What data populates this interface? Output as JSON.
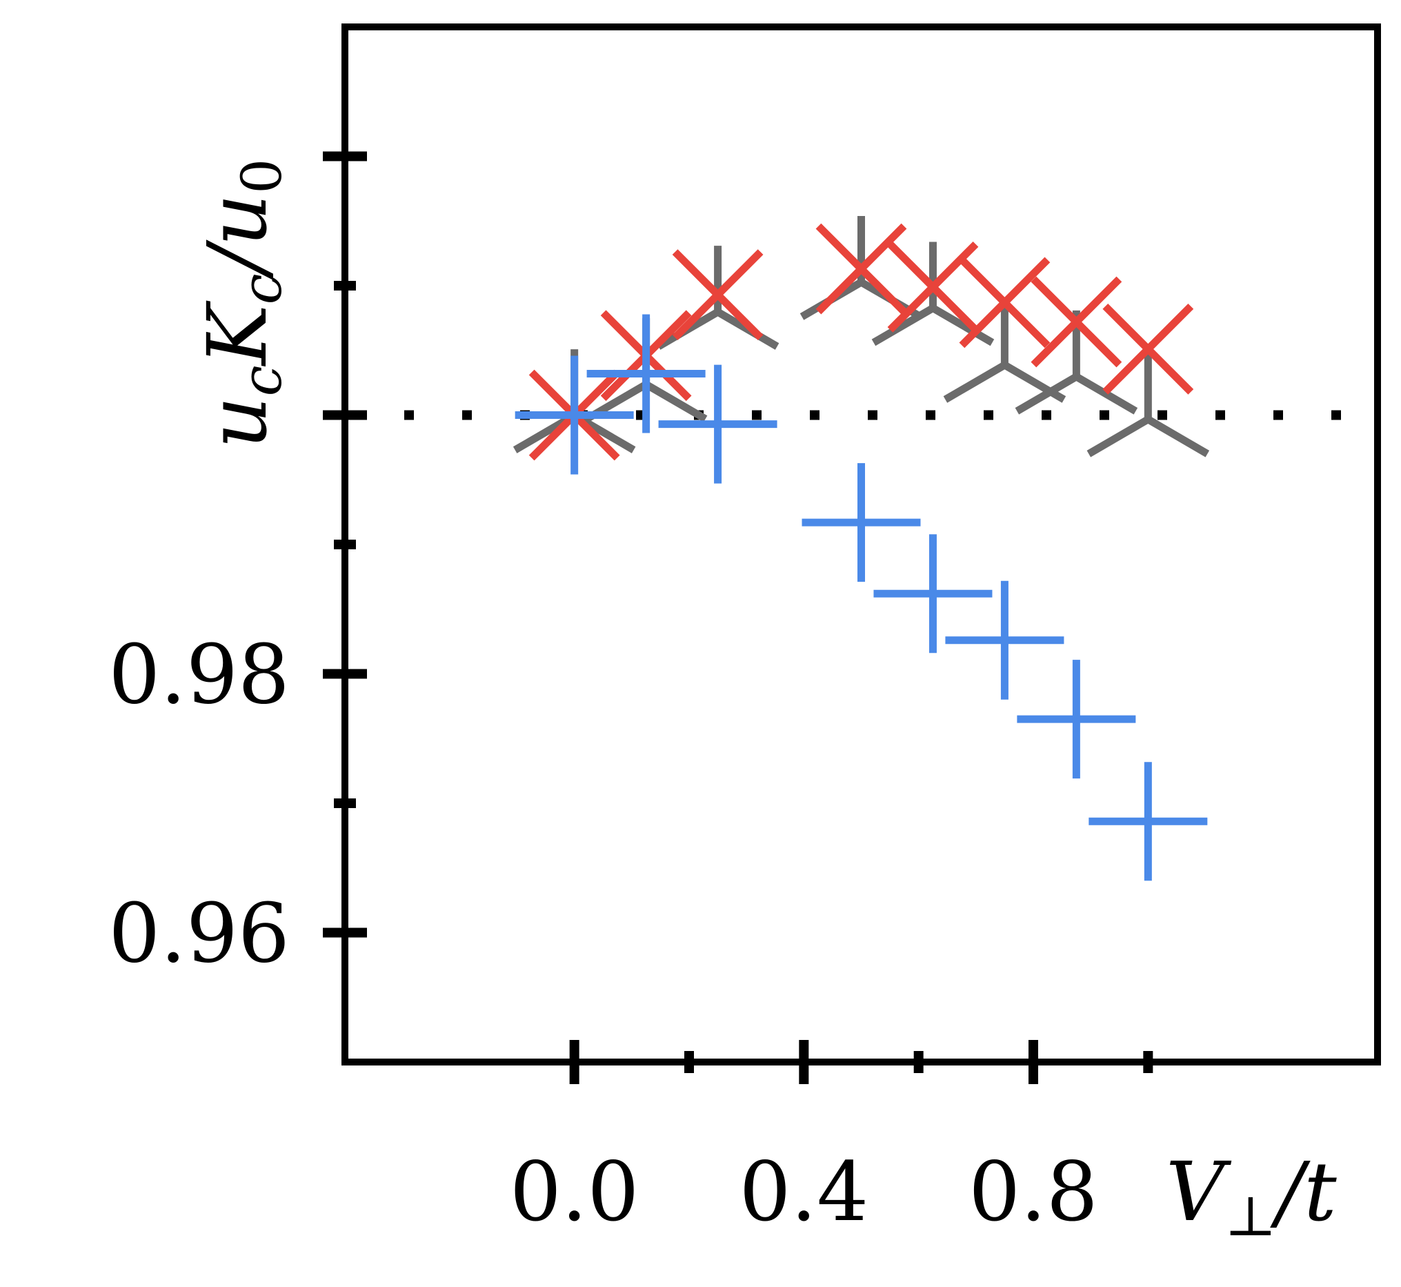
{
  "chart_data": {
    "type": "scatter",
    "title": "",
    "xlabel": "V⊥/t",
    "ylabel": "ucKc/u0",
    "xlim": [
      -0.4,
      1.4
    ],
    "ylim": [
      0.95,
      1.03
    ],
    "xticks": [
      {
        "value": 0.0,
        "label": "0.0"
      },
      {
        "value": 0.2,
        "label": ""
      },
      {
        "value": 0.4,
        "label": "0.4"
      },
      {
        "value": 0.6,
        "label": ""
      },
      {
        "value": 0.8,
        "label": "0.8"
      },
      {
        "value": 1.0,
        "label": ""
      }
    ],
    "yticks": [
      {
        "value": 0.96,
        "label": "0.96"
      },
      {
        "value": 0.97,
        "label": ""
      },
      {
        "value": 0.98,
        "label": "0.98"
      },
      {
        "value": 0.99,
        "label": ""
      },
      {
        "value": 1.0,
        "label": ""
      },
      {
        "value": 1.01,
        "label": ""
      },
      {
        "value": 1.02,
        "label": ""
      }
    ],
    "reference_line": {
      "y": 1.0,
      "style": "dotted",
      "color": "#000000"
    },
    "grid": false,
    "legend": "none",
    "series": [
      {
        "marker": "tri-down",
        "color": "#6b6b6b",
        "x": [
          0.0,
          0.125,
          0.25,
          0.5,
          0.625,
          0.75,
          0.875,
          1.0
        ],
        "y": [
          0.99997,
          1.00237,
          1.00797,
          1.01027,
          1.00827,
          1.00387,
          1.00297,
          0.99967
        ]
      },
      {
        "marker": "x",
        "color": "#e8433a",
        "x": [
          0.0,
          0.125,
          0.25,
          0.5,
          0.625,
          0.75,
          0.875,
          1.0
        ],
        "y": [
          1.0,
          1.0046,
          1.0093,
          1.0113,
          1.0099,
          1.0087,
          1.0072,
          1.0051
        ]
      },
      {
        "marker": "plus",
        "color": "#4a89e8",
        "x": [
          0.0,
          0.125,
          0.25,
          0.5,
          0.625,
          0.75,
          0.875,
          1.0
        ],
        "y": [
          1.0,
          1.0032,
          0.9993,
          0.9917,
          0.9862,
          0.9826,
          0.9765,
          0.9686
        ]
      }
    ]
  }
}
